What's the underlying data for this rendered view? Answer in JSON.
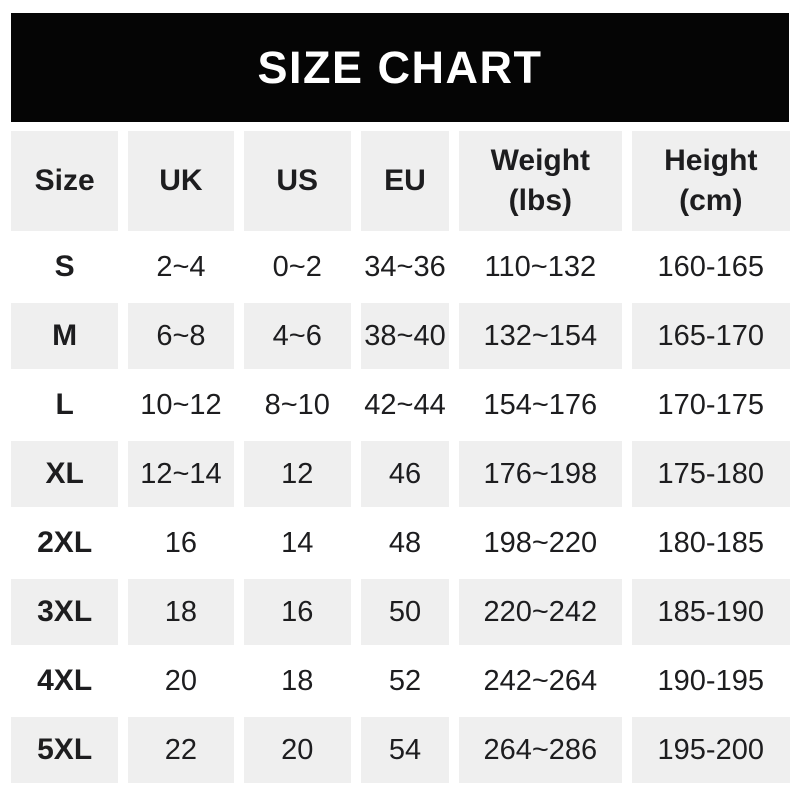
{
  "banner": {
    "title": "SIZE CHART"
  },
  "colors": {
    "banner_bg": "#050505",
    "banner_text": "#ffffff",
    "header_row_bg": "#efefef",
    "alt_row_bg": "#efefef",
    "row_bg": "#ffffff",
    "text": "#1d1d1f"
  },
  "chart_data": {
    "type": "table",
    "title": "SIZE CHART",
    "column_labels": [
      "Size",
      "UK",
      "US",
      "EU",
      "Weight (lbs)",
      "Height (cm)"
    ],
    "columns": [
      {
        "key": "size",
        "line1": "Size"
      },
      {
        "key": "uk",
        "line1": "UK"
      },
      {
        "key": "us",
        "line1": "US"
      },
      {
        "key": "eu",
        "line1": "EU"
      },
      {
        "key": "weight",
        "line1": "Weight",
        "line2": "(lbs)"
      },
      {
        "key": "height",
        "line1": "Height",
        "line2": "(cm)"
      }
    ],
    "rows": [
      {
        "size": "S",
        "uk": "2~4",
        "us": "0~2",
        "eu": "34~36",
        "weight": "110~132",
        "height": "160-165"
      },
      {
        "size": "M",
        "uk": "6~8",
        "us": "4~6",
        "eu": "38~40",
        "weight": "132~154",
        "height": "165-170"
      },
      {
        "size": "L",
        "uk": "10~12",
        "us": "8~10",
        "eu": "42~44",
        "weight": "154~176",
        "height": "170-175"
      },
      {
        "size": "XL",
        "uk": "12~14",
        "us": "12",
        "eu": "46",
        "weight": "176~198",
        "height": "175-180"
      },
      {
        "size": "2XL",
        "uk": "16",
        "us": "14",
        "eu": "48",
        "weight": "198~220",
        "height": "180-185"
      },
      {
        "size": "3XL",
        "uk": "18",
        "us": "16",
        "eu": "50",
        "weight": "220~242",
        "height": "185-190"
      },
      {
        "size": "4XL",
        "uk": "20",
        "us": "18",
        "eu": "52",
        "weight": "242~264",
        "height": "190-195"
      },
      {
        "size": "5XL",
        "uk": "22",
        "us": "20",
        "eu": "54",
        "weight": "264~286",
        "height": "195-200"
      }
    ]
  }
}
